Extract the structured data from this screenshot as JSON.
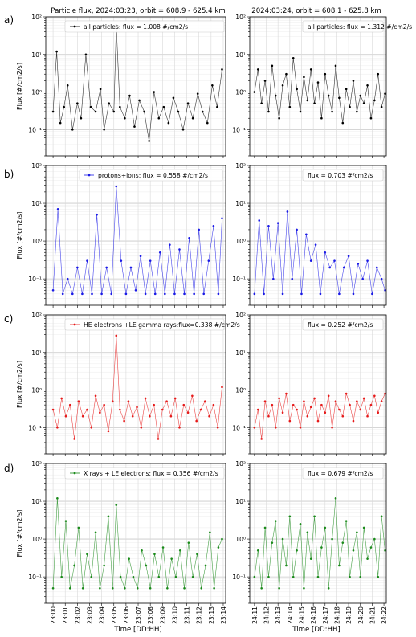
{
  "figure": {
    "left_title": "Particle flux,  2024:03:23, orbit = 608.9 - 625.4 km",
    "right_title": "2024:03:24, orbit = 608.1 - 625.8 km",
    "xlabel": "Time [DD:HH]",
    "ylabel": "Flux [#/cm2/s]",
    "left_xticks": [
      "23:00",
      "23:01",
      "23:02",
      "23:03",
      "23:04",
      "23:05",
      "23:06",
      "23:07",
      "23:08",
      "23:09",
      "23:10",
      "23:11",
      "23:12",
      "23:13",
      "23:14"
    ],
    "right_xticks": [
      "24:11",
      "24:12",
      "24:13",
      "24:14",
      "24:15",
      "24:16",
      "24:17",
      "24:18",
      "24:19",
      "24:20",
      "24:21",
      "24:22"
    ],
    "yticks": [
      "10⁻¹",
      "10⁰",
      "10¹",
      "10²"
    ]
  },
  "chart_data": [
    {
      "type": "line",
      "panel": "a",
      "side": "left",
      "title": "Particle flux,  2024:03:23, orbit = 608.9 - 625.4 km",
      "xlabel": "",
      "ylabel": "Flux [#/cm2/s]",
      "yscale": "log",
      "ylim": [
        0.02,
        100
      ],
      "xlim": [
        -0.6,
        14.2
      ],
      "color": "#000000",
      "legend": "all particles: flux = 1.008 #/cm2/s",
      "legend_position": "top-center",
      "grid": true,
      "series": [
        {
          "name": "all particles: flux = 1.008 #/cm2/s",
          "x": [
            0,
            0.3,
            0.6,
            0.9,
            1.2,
            1.6,
            2,
            2.3,
            2.7,
            3.1,
            3.5,
            3.9,
            4.2,
            4.6,
            5,
            5.2,
            5.5,
            5.9,
            6.3,
            6.7,
            7.1,
            7.5,
            7.9,
            8.3,
            8.7,
            9.1,
            9.5,
            9.9,
            10.3,
            10.7,
            11.1,
            11.5,
            11.9,
            12.3,
            12.7,
            13.1,
            13.5,
            13.9
          ],
          "y": [
            0.3,
            12,
            0.15,
            0.4,
            1.5,
            0.1,
            0.5,
            0.2,
            10,
            0.4,
            0.3,
            1.2,
            0.1,
            0.5,
            0.3,
            60,
            0.4,
            0.2,
            0.8,
            0.12,
            0.6,
            0.3,
            0.05,
            1,
            0.2,
            0.4,
            0.15,
            0.7,
            0.3,
            0.1,
            0.5,
            0.2,
            0.9,
            0.3,
            0.15,
            1.5,
            0.4,
            4
          ]
        }
      ]
    },
    {
      "type": "line",
      "panel": "a",
      "side": "right",
      "title": "2024:03:24, orbit = 608.1 - 625.8 km",
      "xlabel": "",
      "ylabel": "",
      "yscale": "log",
      "ylim": [
        0.02,
        100
      ],
      "xlim": [
        10.6,
        22.2
      ],
      "color": "#000000",
      "legend": "all particles: flux = 1.312 #/cm2/s",
      "legend_position": "top-center",
      "grid": true,
      "series": [
        {
          "name": "all particles: flux = 1.312 #/cm2/s",
          "x": [
            11,
            11.3,
            11.6,
            11.9,
            12.2,
            12.5,
            12.8,
            13.1,
            13.4,
            13.7,
            14,
            14.3,
            14.6,
            14.9,
            15.2,
            15.5,
            15.8,
            16.1,
            16.4,
            16.7,
            17,
            17.3,
            17.6,
            17.9,
            18.2,
            18.5,
            18.8,
            19.1,
            19.4,
            19.7,
            20,
            20.3,
            20.6,
            20.9,
            21.2,
            21.5,
            21.8,
            22.1
          ],
          "y": [
            1,
            4,
            0.5,
            2,
            0.3,
            5,
            0.8,
            0.2,
            1.5,
            3,
            0.4,
            8,
            1.2,
            0.3,
            2.5,
            0.6,
            4,
            0.5,
            1.8,
            0.2,
            3,
            0.8,
            0.3,
            5,
            0.7,
            0.15,
            1.2,
            0.4,
            2,
            0.3,
            0.8,
            0.5,
            1.5,
            0.2,
            0.6,
            3,
            0.4,
            0.9
          ]
        }
      ]
    },
    {
      "type": "line",
      "panel": "b",
      "side": "left",
      "title": "",
      "xlabel": "",
      "ylabel": "Flux [#/cm2/s]",
      "yscale": "log",
      "ylim": [
        0.02,
        100
      ],
      "xlim": [
        -0.6,
        14.2
      ],
      "color": "#1a1ae6",
      "legend": "protons+ions: flux = 0.558 #/cm2/s",
      "legend_position": "top-right",
      "grid": true,
      "series": [
        {
          "name": "protons+ions: flux = 0.558 #/cm2/s",
          "x": [
            0,
            0.4,
            0.8,
            1.2,
            1.6,
            2,
            2.4,
            2.8,
            3.2,
            3.6,
            4,
            4.4,
            4.8,
            5.2,
            5.6,
            6,
            6.4,
            6.8,
            7.2,
            7.6,
            8,
            8.4,
            8.8,
            9.2,
            9.6,
            10,
            10.4,
            10.8,
            11.2,
            11.6,
            12,
            12.4,
            12.8,
            13.2,
            13.6,
            13.9
          ],
          "y": [
            0.05,
            7,
            0.04,
            0.1,
            0.04,
            0.2,
            0.04,
            0.3,
            0.04,
            5,
            0.04,
            0.2,
            0.04,
            28,
            0.3,
            0.04,
            0.2,
            0.05,
            0.4,
            0.04,
            0.3,
            0.04,
            0.5,
            0.04,
            0.8,
            0.04,
            0.6,
            0.04,
            1.2,
            0.04,
            2,
            0.04,
            0.3,
            2.5,
            0.04,
            4
          ]
        }
      ]
    },
    {
      "type": "line",
      "panel": "b",
      "side": "right",
      "title": "",
      "xlabel": "",
      "ylabel": "",
      "yscale": "log",
      "ylim": [
        0.02,
        100
      ],
      "xlim": [
        10.6,
        22.2
      ],
      "color": "#1a1ae6",
      "legend": "flux = 0.703 #/cm2/s",
      "legend_position": "top-right",
      "grid": true,
      "series": [
        {
          "name": "flux = 0.703 #/cm2/s",
          "x": [
            11,
            11.4,
            11.8,
            12.2,
            12.6,
            13,
            13.4,
            13.8,
            14.2,
            14.6,
            15,
            15.4,
            15.8,
            16.2,
            16.6,
            17,
            17.4,
            17.8,
            18.2,
            18.6,
            19,
            19.4,
            19.8,
            20.2,
            20.6,
            21,
            21.4,
            21.8,
            22.1
          ],
          "y": [
            0.04,
            3.5,
            0.04,
            2.5,
            0.1,
            3,
            0.04,
            6,
            0.1,
            2,
            0.04,
            1.5,
            0.3,
            0.8,
            0.04,
            0.5,
            0.2,
            0.3,
            0.04,
            0.2,
            0.4,
            0.04,
            0.25,
            0.1,
            0.3,
            0.04,
            0.2,
            0.1,
            0.05
          ]
        }
      ]
    },
    {
      "type": "line",
      "panel": "c",
      "side": "left",
      "title": "",
      "xlabel": "",
      "ylabel": "Flux [#/cm2/s]",
      "yscale": "log",
      "ylim": [
        0.02,
        100
      ],
      "xlim": [
        -0.6,
        14.2
      ],
      "color": "#e61a1a",
      "legend": "HE electrons +LE gamma rays:flux=0.338 #/cm2/s",
      "legend_position": "top-center",
      "grid": true,
      "series": [
        {
          "name": "HE electrons +LE gamma rays:flux=0.338 #/cm2/s",
          "x": [
            0,
            0.35,
            0.7,
            1.05,
            1.4,
            1.75,
            2.1,
            2.45,
            2.8,
            3.15,
            3.5,
            3.85,
            4.2,
            4.55,
            4.9,
            5.2,
            5.5,
            5.85,
            6.2,
            6.55,
            6.9,
            7.25,
            7.6,
            7.95,
            8.3,
            8.65,
            9,
            9.35,
            9.7,
            10.05,
            10.4,
            10.75,
            11.1,
            11.45,
            11.8,
            12.15,
            12.5,
            12.85,
            13.2,
            13.55,
            13.9
          ],
          "y": [
            0.3,
            0.1,
            0.6,
            0.2,
            0.4,
            0.05,
            0.5,
            0.2,
            0.3,
            0.1,
            0.7,
            0.25,
            0.4,
            0.08,
            0.5,
            28,
            0.3,
            0.15,
            0.5,
            0.2,
            0.35,
            0.1,
            0.6,
            0.2,
            0.4,
            0.05,
            0.3,
            0.5,
            0.2,
            0.6,
            0.1,
            0.4,
            0.25,
            0.7,
            0.15,
            0.3,
            0.5,
            0.2,
            0.4,
            0.1,
            1.2
          ]
        }
      ]
    },
    {
      "type": "line",
      "panel": "c",
      "side": "right",
      "title": "",
      "xlabel": "",
      "ylabel": "",
      "yscale": "log",
      "ylim": [
        0.02,
        100
      ],
      "xlim": [
        10.6,
        22.2
      ],
      "color": "#e61a1a",
      "legend": "flux = 0.252 #/cm2/s",
      "legend_position": "top-right",
      "grid": true,
      "series": [
        {
          "name": "flux = 0.252 #/cm2/s",
          "x": [
            11,
            11.3,
            11.6,
            11.9,
            12.2,
            12.5,
            12.8,
            13.1,
            13.4,
            13.7,
            14,
            14.3,
            14.6,
            14.9,
            15.2,
            15.5,
            15.8,
            16.1,
            16.4,
            16.7,
            17,
            17.3,
            17.6,
            17.9,
            18.2,
            18.5,
            18.8,
            19.1,
            19.4,
            19.7,
            20,
            20.3,
            20.6,
            20.9,
            21.2,
            21.5,
            21.8,
            22.1
          ],
          "y": [
            0.1,
            0.3,
            0.05,
            0.5,
            0.2,
            0.4,
            0.1,
            0.6,
            0.25,
            0.8,
            0.15,
            0.4,
            0.3,
            0.1,
            0.5,
            0.2,
            0.35,
            0.6,
            0.15,
            0.4,
            0.25,
            0.7,
            0.1,
            0.5,
            0.3,
            0.2,
            0.8,
            0.4,
            0.15,
            0.5,
            0.3,
            0.6,
            0.2,
            0.4,
            0.7,
            0.25,
            0.5,
            0.8
          ]
        }
      ]
    },
    {
      "type": "line",
      "panel": "d",
      "side": "left",
      "title": "",
      "xlabel": "Time [DD:HH]",
      "ylabel": "Flux [#/cm2/s]",
      "yscale": "log",
      "ylim": [
        0.02,
        100
      ],
      "xlim": [
        -0.6,
        14.2
      ],
      "color": "#1a8a1a",
      "legend": "X rays + LE electrons: flux = 0.356 #/cm2/s",
      "legend_position": "top-center",
      "grid": true,
      "series": [
        {
          "name": "X rays + LE electrons: flux = 0.356 #/cm2/s",
          "x": [
            0,
            0.35,
            0.7,
            1.05,
            1.4,
            1.75,
            2.1,
            2.45,
            2.8,
            3.15,
            3.5,
            3.85,
            4.2,
            4.55,
            4.9,
            5.2,
            5.55,
            5.9,
            6.25,
            6.6,
            6.95,
            7.3,
            7.65,
            8,
            8.35,
            8.7,
            9.05,
            9.4,
            9.75,
            10.1,
            10.45,
            10.8,
            11.15,
            11.5,
            11.85,
            12.2,
            12.55,
            12.9,
            13.25,
            13.6,
            13.9
          ],
          "y": [
            0.05,
            12,
            0.1,
            3,
            0.05,
            0.2,
            2,
            0.05,
            0.4,
            0.1,
            1.5,
            0.05,
            0.2,
            4,
            0.05,
            8,
            0.1,
            0.05,
            0.3,
            0.1,
            0.05,
            0.5,
            0.2,
            0.05,
            0.4,
            0.1,
            0.6,
            0.05,
            0.3,
            0.1,
            0.5,
            0.05,
            0.8,
            0.1,
            0.4,
            0.05,
            0.2,
            1.5,
            0.05,
            0.6,
            1
          ]
        }
      ]
    },
    {
      "type": "line",
      "panel": "d",
      "side": "right",
      "title": "",
      "xlabel": "Time [DD:HH]",
      "ylabel": "",
      "yscale": "log",
      "ylim": [
        0.02,
        100
      ],
      "xlim": [
        10.6,
        22.2
      ],
      "color": "#1a8a1a",
      "legend": "flux = 0.679 #/cm2/s",
      "legend_position": "top-right",
      "grid": true,
      "series": [
        {
          "name": "flux = 0.679 #/cm2/s",
          "x": [
            11,
            11.3,
            11.6,
            11.9,
            12.2,
            12.5,
            12.8,
            13.1,
            13.4,
            13.7,
            14,
            14.3,
            14.6,
            14.9,
            15.2,
            15.5,
            15.8,
            16.1,
            16.4,
            16.7,
            17,
            17.3,
            17.6,
            17.9,
            18.2,
            18.5,
            18.8,
            19.1,
            19.4,
            19.7,
            20,
            20.3,
            20.6,
            20.9,
            21.2,
            21.5,
            21.8,
            22.1
          ],
          "y": [
            0.1,
            0.5,
            0.05,
            2,
            0.1,
            0.8,
            3,
            0.05,
            1,
            0.2,
            4,
            0.1,
            0.5,
            2.5,
            0.05,
            1.5,
            0.3,
            4,
            0.1,
            0.6,
            2,
            0.05,
            1,
            12,
            0.2,
            0.8,
            3,
            0.1,
            0.5,
            1.5,
            0.1,
            2,
            0.3,
            0.6,
            1,
            0.1,
            4,
            0.5
          ]
        }
      ]
    }
  ]
}
